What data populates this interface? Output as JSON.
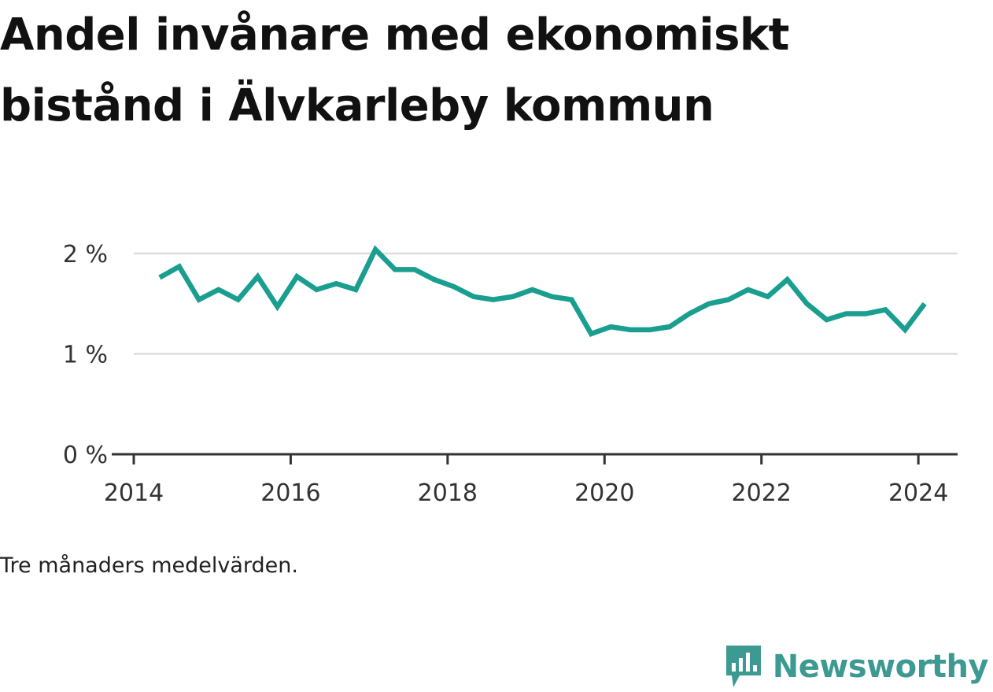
{
  "title": "Andel invånare med ekonomiskt bistånd i Älvkarleby kommun",
  "caption": "Tre månaders medelvärden.",
  "brand": {
    "name": "Newsworthy",
    "icon": "newsworthy-logo-icon",
    "color": "#3d9a92"
  },
  "colors": {
    "line": "#1a9e90",
    "grid": "#dddddd",
    "axis": "#333333"
  },
  "chart_data": {
    "type": "line",
    "title": "Andel invånare med ekonomiskt bistånd i Älvkarleby kommun",
    "xlabel": "",
    "ylabel": "",
    "xlim": [
      2014.0,
      2024.5
    ],
    "ylim": [
      0,
      2
    ],
    "x_ticks": [
      2014,
      2016,
      2018,
      2020,
      2022,
      2024
    ],
    "x_tick_labels": [
      "2014",
      "2016",
      "2018",
      "2020",
      "2022",
      "2024"
    ],
    "y_ticks": [
      0,
      1,
      2
    ],
    "y_tick_labels": [
      "0 %",
      "1 %",
      "2 %"
    ],
    "grid": "horizontal",
    "series": [
      {
        "x": [
          2014.33,
          2014.58,
          2014.83,
          2015.08,
          2015.33,
          2015.58,
          2015.83,
          2016.08,
          2016.33,
          2016.58,
          2016.83,
          2017.08,
          2017.33,
          2017.58,
          2017.83,
          2018.08,
          2018.33,
          2018.58,
          2018.83,
          2019.08,
          2019.33,
          2019.58,
          2019.83,
          2020.08,
          2020.33,
          2020.58,
          2020.83,
          2021.08,
          2021.33,
          2021.58,
          2021.83,
          2022.08,
          2022.33,
          2022.58,
          2022.83,
          2023.08,
          2023.33,
          2023.58,
          2023.83,
          2024.08
        ],
        "values": [
          1.76,
          1.87,
          1.54,
          1.64,
          1.54,
          1.77,
          1.47,
          1.77,
          1.64,
          1.7,
          1.64,
          2.04,
          1.84,
          1.84,
          1.74,
          1.67,
          1.57,
          1.54,
          1.57,
          1.64,
          1.57,
          1.54,
          1.2,
          1.27,
          1.24,
          1.24,
          1.27,
          1.4,
          1.5,
          1.54,
          1.64,
          1.57,
          1.74,
          1.5,
          1.34,
          1.4,
          1.4,
          1.44,
          1.24,
          1.5
        ]
      }
    ]
  }
}
